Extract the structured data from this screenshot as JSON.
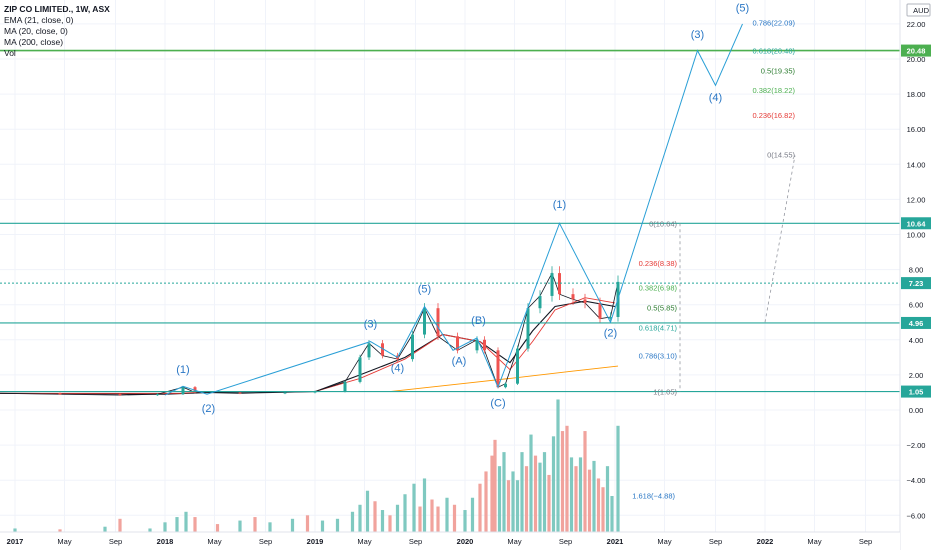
{
  "legend": {
    "title": "ZIP CO LIMITED., 1W, ASX",
    "ema": "EMA (21, close, 0)",
    "ma20": "MA (20, close, 0)",
    "ma200": "MA (200, close)",
    "vol": "Vol"
  },
  "currency": "AUD",
  "chart_data": {
    "type": "line",
    "title": "ZIP CO LIMITED., 1W, ASX",
    "xlabel": "",
    "ylabel": "",
    "ylim": [
      -7.0,
      23.0
    ],
    "y_ticks": [
      22.0,
      20.0,
      18.0,
      16.0,
      14.0,
      12.0,
      10.0,
      8.0,
      6.0,
      4.0,
      2.0,
      0.0,
      -2.0,
      -4.0,
      -6.0
    ],
    "y_tick_labels": [
      "22.00",
      "20.00",
      "18.00",
      "16.00",
      "14.00",
      "12.00",
      "10.00",
      "8.00",
      "6.00",
      "4.00",
      "2.00",
      "0.00",
      "−2.00",
      "−4.00",
      "−6.00"
    ],
    "x_tick_labels": [
      {
        "label": "2017",
        "t": 2017.0
      },
      {
        "label": "May",
        "t": 2017.33
      },
      {
        "label": "Sep",
        "t": 2017.67
      },
      {
        "label": "2018",
        "t": 2018.0
      },
      {
        "label": "May",
        "t": 2018.33
      },
      {
        "label": "Sep",
        "t": 2018.67
      },
      {
        "label": "2019",
        "t": 2019.0
      },
      {
        "label": "May",
        "t": 2019.33
      },
      {
        "label": "Sep",
        "t": 2019.67
      },
      {
        "label": "2020",
        "t": 2020.0
      },
      {
        "label": "May",
        "t": 2020.33
      },
      {
        "label": "Sep",
        "t": 2020.67
      },
      {
        "label": "2021",
        "t": 2021.0
      },
      {
        "label": "May",
        "t": 2021.33
      },
      {
        "label": "Sep",
        "t": 2021.67
      },
      {
        "label": "2022",
        "t": 2022.0
      },
      {
        "label": "May",
        "t": 2022.33
      },
      {
        "label": "Sep",
        "t": 2022.67
      }
    ],
    "price_path": [
      [
        2016.9,
        0.95
      ],
      [
        2017.3,
        0.9
      ],
      [
        2017.7,
        0.85
      ],
      [
        2017.95,
        0.9
      ],
      [
        2018.12,
        1.3
      ],
      [
        2018.2,
        1.0
      ],
      [
        2018.5,
        0.95
      ],
      [
        2018.8,
        1.0
      ],
      [
        2019.0,
        1.05
      ],
      [
        2019.2,
        1.6
      ],
      [
        2019.3,
        3.0
      ],
      [
        2019.36,
        3.8
      ],
      [
        2019.45,
        3.1
      ],
      [
        2019.55,
        2.9
      ],
      [
        2019.65,
        4.3
      ],
      [
        2019.73,
        5.8
      ],
      [
        2019.82,
        4.2
      ],
      [
        2019.95,
        3.4
      ],
      [
        2020.08,
        4.0
      ],
      [
        2020.13,
        3.4
      ],
      [
        2020.22,
        1.3
      ],
      [
        2020.27,
        1.5
      ],
      [
        2020.35,
        3.5
      ],
      [
        2020.42,
        5.8
      ],
      [
        2020.5,
        6.5
      ],
      [
        2020.58,
        7.8
      ],
      [
        2020.63,
        6.6
      ],
      [
        2020.72,
        6.3
      ],
      [
        2020.8,
        6.1
      ],
      [
        2020.9,
        5.2
      ],
      [
        2020.97,
        5.3
      ],
      [
        2021.02,
        7.3
      ]
    ],
    "series": [
      {
        "name": "EMA (21, close, 0)",
        "color": "#131722",
        "points": [
          [
            2016.9,
            0.95
          ],
          [
            2018.0,
            0.9
          ],
          [
            2018.3,
            1.0
          ],
          [
            2019.0,
            1.05
          ],
          [
            2019.3,
            2.0
          ],
          [
            2019.6,
            3.0
          ],
          [
            2019.85,
            4.3
          ],
          [
            2020.1,
            3.9
          ],
          [
            2020.3,
            2.7
          ],
          [
            2020.45,
            4.5
          ],
          [
            2020.6,
            5.9
          ],
          [
            2020.8,
            6.2
          ],
          [
            2021.0,
            5.9
          ]
        ]
      },
      {
        "name": "MA (20, close, 0)",
        "color": "#e53935",
        "points": [
          [
            2016.9,
            0.95
          ],
          [
            2018.1,
            0.95
          ],
          [
            2018.3,
            1.05
          ],
          [
            2019.0,
            1.05
          ],
          [
            2019.3,
            1.8
          ],
          [
            2019.6,
            2.9
          ],
          [
            2019.85,
            4.3
          ],
          [
            2020.1,
            3.9
          ],
          [
            2020.3,
            2.3
          ],
          [
            2020.45,
            3.9
          ],
          [
            2020.6,
            5.7
          ],
          [
            2020.8,
            6.4
          ],
          [
            2021.0,
            6.1
          ]
        ]
      },
      {
        "name": "MA (200, close)",
        "color": "#ff9800",
        "points": [
          [
            2019.5,
            1.05
          ],
          [
            2020.3,
            1.8
          ],
          [
            2020.7,
            2.2
          ],
          [
            2021.02,
            2.5
          ]
        ]
      }
    ],
    "volume": [
      {
        "t": 2017.0,
        "v": 0.25,
        "up": true
      },
      {
        "t": 2017.3,
        "v": 0.2,
        "up": false
      },
      {
        "t": 2017.6,
        "v": 0.35,
        "up": true
      },
      {
        "t": 2017.7,
        "v": 0.8,
        "up": false
      },
      {
        "t": 2017.9,
        "v": 0.25,
        "up": true
      },
      {
        "t": 2018.0,
        "v": 0.6,
        "up": true
      },
      {
        "t": 2018.08,
        "v": 0.9,
        "up": true
      },
      {
        "t": 2018.14,
        "v": 1.2,
        "up": true
      },
      {
        "t": 2018.2,
        "v": 0.9,
        "up": false
      },
      {
        "t": 2018.35,
        "v": 0.5,
        "up": false
      },
      {
        "t": 2018.5,
        "v": 0.7,
        "up": true
      },
      {
        "t": 2018.6,
        "v": 0.9,
        "up": false
      },
      {
        "t": 2018.7,
        "v": 0.6,
        "up": true
      },
      {
        "t": 2018.85,
        "v": 0.8,
        "up": true
      },
      {
        "t": 2018.95,
        "v": 1.0,
        "up": false
      },
      {
        "t": 2019.05,
        "v": 0.7,
        "up": true
      },
      {
        "t": 2019.15,
        "v": 0.8,
        "up": true
      },
      {
        "t": 2019.25,
        "v": 1.2,
        "up": true
      },
      {
        "t": 2019.3,
        "v": 1.6,
        "up": true
      },
      {
        "t": 2019.35,
        "v": 2.4,
        "up": true
      },
      {
        "t": 2019.4,
        "v": 1.8,
        "up": false
      },
      {
        "t": 2019.45,
        "v": 1.3,
        "up": true
      },
      {
        "t": 2019.5,
        "v": 1.0,
        "up": false
      },
      {
        "t": 2019.55,
        "v": 1.6,
        "up": true
      },
      {
        "t": 2019.6,
        "v": 2.2,
        "up": true
      },
      {
        "t": 2019.66,
        "v": 2.8,
        "up": true
      },
      {
        "t": 2019.7,
        "v": 1.5,
        "up": false
      },
      {
        "t": 2019.73,
        "v": 3.1,
        "up": true
      },
      {
        "t": 2019.78,
        "v": 1.9,
        "up": false
      },
      {
        "t": 2019.82,
        "v": 1.5,
        "up": false
      },
      {
        "t": 2019.88,
        "v": 2.0,
        "up": true
      },
      {
        "t": 2019.93,
        "v": 1.6,
        "up": false
      },
      {
        "t": 2020.0,
        "v": 1.3,
        "up": true
      },
      {
        "t": 2020.05,
        "v": 2.0,
        "up": true
      },
      {
        "t": 2020.1,
        "v": 2.8,
        "up": false
      },
      {
        "t": 2020.14,
        "v": 3.5,
        "up": false
      },
      {
        "t": 2020.18,
        "v": 4.4,
        "up": false
      },
      {
        "t": 2020.2,
        "v": 5.3,
        "up": false
      },
      {
        "t": 2020.23,
        "v": 3.8,
        "up": true
      },
      {
        "t": 2020.26,
        "v": 4.6,
        "up": true
      },
      {
        "t": 2020.29,
        "v": 3.0,
        "up": false
      },
      {
        "t": 2020.32,
        "v": 3.5,
        "up": true
      },
      {
        "t": 2020.35,
        "v": 3.0,
        "up": true
      },
      {
        "t": 2020.38,
        "v": 4.6,
        "up": true
      },
      {
        "t": 2020.41,
        "v": 3.8,
        "up": false
      },
      {
        "t": 2020.44,
        "v": 5.6,
        "up": true
      },
      {
        "t": 2020.47,
        "v": 4.4,
        "up": false
      },
      {
        "t": 2020.5,
        "v": 4.0,
        "up": true
      },
      {
        "t": 2020.53,
        "v": 4.6,
        "up": true
      },
      {
        "t": 2020.56,
        "v": 3.3,
        "up": false
      },
      {
        "t": 2020.59,
        "v": 5.5,
        "up": true
      },
      {
        "t": 2020.62,
        "v": 7.6,
        "up": true
      },
      {
        "t": 2020.65,
        "v": 5.8,
        "up": false
      },
      {
        "t": 2020.68,
        "v": 6.1,
        "up": false
      },
      {
        "t": 2020.71,
        "v": 4.3,
        "up": true
      },
      {
        "t": 2020.74,
        "v": 3.8,
        "up": false
      },
      {
        "t": 2020.77,
        "v": 4.3,
        "up": true
      },
      {
        "t": 2020.8,
        "v": 5.8,
        "up": false
      },
      {
        "t": 2020.83,
        "v": 3.6,
        "up": false
      },
      {
        "t": 2020.86,
        "v": 4.1,
        "up": true
      },
      {
        "t": 2020.89,
        "v": 3.1,
        "up": false
      },
      {
        "t": 2020.92,
        "v": 2.6,
        "up": false
      },
      {
        "t": 2020.95,
        "v": 3.8,
        "up": true
      },
      {
        "t": 2020.98,
        "v": 2.1,
        "up": true
      },
      {
        "t": 2021.02,
        "v": 6.1,
        "up": true
      }
    ],
    "horizontal_levels": [
      {
        "value": 20.48,
        "label": "20.48",
        "color": "#4caf50"
      },
      {
        "value": 10.64,
        "label": "10.64",
        "color": "#26a69a"
      },
      {
        "value": 7.23,
        "label": "7.23",
        "color": "#26a69a"
      },
      {
        "value": 4.96,
        "label": "4.96",
        "color": "#26a69a"
      },
      {
        "value": 1.05,
        "label": "1.05",
        "color": "#26a69a"
      }
    ],
    "fib_retracement": [
      {
        "label": "0(10.64)",
        "value": 10.64,
        "color": "#787b86"
      },
      {
        "label": "0.236(8.38)",
        "value": 8.38,
        "color": "#e53935"
      },
      {
        "label": "0.382(6.98)",
        "value": 6.98,
        "color": "#4caf50"
      },
      {
        "label": "0.5(5.85)",
        "value": 5.85,
        "color": "#2e7d32"
      },
      {
        "label": "0.618(4.71)",
        "value": 4.71,
        "color": "#26a69a"
      },
      {
        "label": "0.786(3.10)",
        "value": 3.1,
        "color": "#2a77c5"
      },
      {
        "label": "1(1.05)",
        "value": 1.05,
        "color": "#787b86"
      }
    ],
    "fib_extension": [
      {
        "label": "0.786(22.09)",
        "value": 22.09,
        "color": "#2a77c5"
      },
      {
        "label": "0.618(20.48)",
        "value": 20.48,
        "color": "#26a69a"
      },
      {
        "label": "0.5(19.35)",
        "value": 19.35,
        "color": "#2e7d32"
      },
      {
        "label": "0.382(18.22)",
        "value": 18.22,
        "color": "#4caf50"
      },
      {
        "label": "0.236(16.82)",
        "value": 16.82,
        "color": "#e53935"
      },
      {
        "label": "0(14.55)",
        "value": 14.55,
        "color": "#787b86"
      }
    ],
    "fib_extension_vol_label": {
      "label": "1.618(−4.88)",
      "value": -4.88,
      "color": "#2a77c5"
    },
    "wave_path": [
      [
        2018.0,
        0.85
      ],
      [
        2018.12,
        1.35
      ],
      [
        2018.28,
        0.9
      ],
      [
        2019.37,
        3.9
      ],
      [
        2019.55,
        3.0
      ],
      [
        2019.73,
        5.9
      ],
      [
        2019.92,
        3.4
      ],
      [
        2020.08,
        4.1
      ],
      [
        2020.22,
        1.3
      ],
      [
        2020.63,
        10.64
      ],
      [
        2020.97,
        5.0
      ],
      [
        2021.55,
        20.48
      ],
      [
        2021.67,
        18.5
      ],
      [
        2021.85,
        22.0
      ]
    ],
    "wave_labels": [
      {
        "label": "(1)",
        "t": 2018.12,
        "v": 2.1
      },
      {
        "label": "(2)",
        "t": 2018.29,
        "v": -0.1
      },
      {
        "label": "(3)",
        "t": 2019.37,
        "v": 4.7
      },
      {
        "label": "(4)",
        "t": 2019.55,
        "v": 2.2
      },
      {
        "label": "(5)",
        "t": 2019.73,
        "v": 6.7
      },
      {
        "label": "(A)",
        "t": 2019.96,
        "v": 2.6
      },
      {
        "label": "(B)",
        "t": 2020.09,
        "v": 4.9
      },
      {
        "label": "(C)",
        "t": 2020.22,
        "v": 0.2
      },
      {
        "label": "(1)",
        "t": 2020.63,
        "v": 11.5
      },
      {
        "label": "(2)",
        "t": 2020.97,
        "v": 4.2
      },
      {
        "label": "(3)",
        "t": 2021.55,
        "v": 21.2
      },
      {
        "label": "(4)",
        "t": 2021.67,
        "v": 17.6
      },
      {
        "label": "(5)",
        "t": 2021.85,
        "v": 22.7
      }
    ],
    "projection_dashed": [
      [
        2022.0,
        5.0
      ],
      [
        2022.2,
        14.5
      ]
    ]
  }
}
